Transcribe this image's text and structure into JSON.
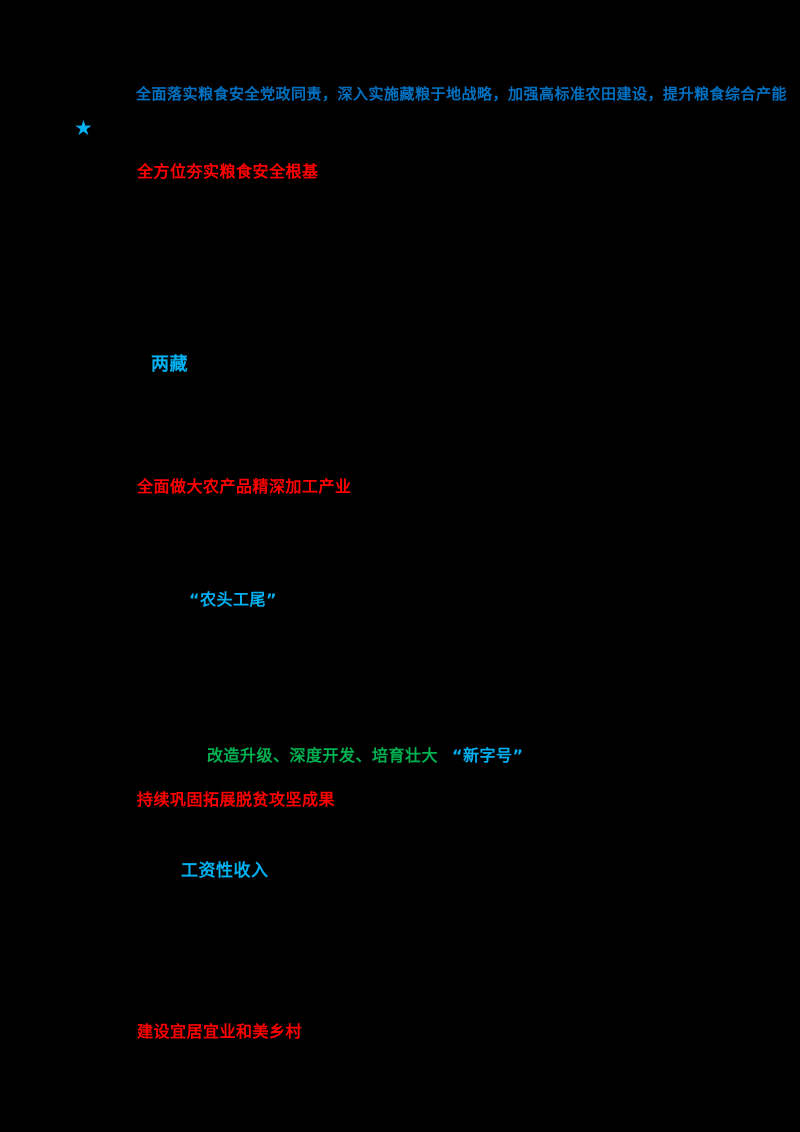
{
  "page": {
    "background_color": "#000000",
    "note_colors": {
      "emphasis_blue": "#0070C0",
      "highlight_cyan": "#00B0F0",
      "heading_red": "#FF0000",
      "phrase_green": "#00B050"
    }
  },
  "document": {
    "blue_quote": "全面落实粮食安全党政同责，深入实施藏粮于地战略，加强高标准农田建设，提升粮食综合产能",
    "star_marker": "★",
    "sections": [
      {
        "heading": "全方位夯实粮食安全根基"
      },
      {
        "heading": "全面做大农产品精深加工产业"
      },
      {
        "heading": "持续巩固拓展脱贫攻坚成果"
      },
      {
        "heading": "建设宜居宜业和美乡村"
      }
    ],
    "key_terms": {
      "term1": "两藏",
      "quote1": "“农头工尾”",
      "green_phrases": "改造升级、深度开发、培育壮大",
      "quote2": "“新字号”",
      "term2": "工资性收入"
    }
  }
}
